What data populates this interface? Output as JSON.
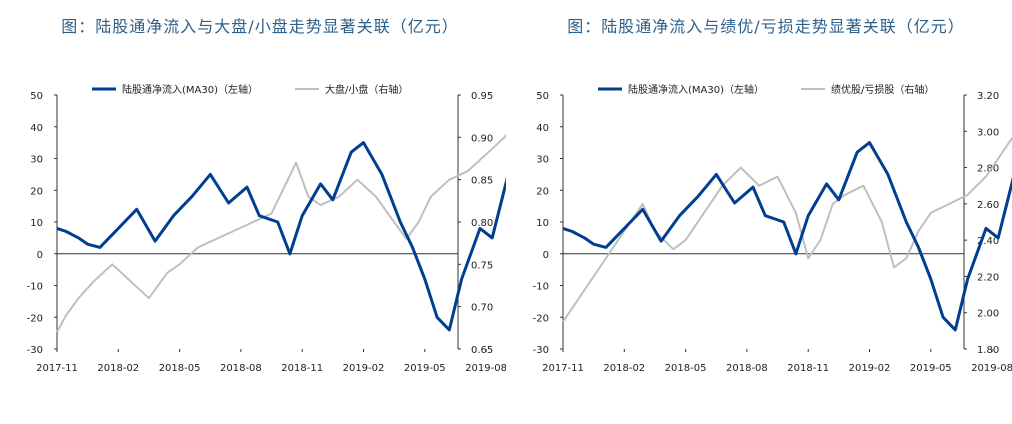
{
  "charts": [
    {
      "title": "图：陆股通净流入与大盘/小盘走势显著关联（亿元）",
      "chart_data": {
        "type": "line",
        "x_ticks": [
          "2017-11",
          "2018-02",
          "2018-05",
          "2018-08",
          "2018-11",
          "2019-02",
          "2019-05",
          "2019-08"
        ],
        "y_left": {
          "range": [
            -30,
            50
          ],
          "ticks": [
            "-30",
            "-20",
            "-10",
            "0",
            "10",
            "20",
            "30",
            "40",
            "50"
          ]
        },
        "y_right": {
          "range": [
            0.65,
            0.95
          ],
          "ticks": [
            "0.65",
            "0.70",
            "0.75",
            "0.80",
            "0.85",
            "0.90",
            "0.95"
          ]
        },
        "series": [
          {
            "name": "陆股通净流入(MA30)（左轴）",
            "axis": "left",
            "color": "#003f8f",
            "x": [
              0,
              0.15,
              0.35,
              0.5,
              0.7,
              1.0,
              1.3,
              1.6,
              1.9,
              2.2,
              2.5,
              2.8,
              3.1,
              3.3,
              3.6,
              3.8,
              4.0,
              4.3,
              4.5,
              4.8,
              5.0,
              5.3,
              5.6,
              5.8,
              6.0,
              6.2,
              6.4,
              6.6,
              6.9,
              7.1,
              7.4,
              7.6,
              7.85
            ],
            "values": [
              8,
              7,
              5,
              3,
              2,
              8,
              14,
              4,
              12,
              18,
              25,
              16,
              21,
              12,
              10,
              0,
              12,
              22,
              17,
              32,
              35,
              25,
              10,
              2,
              -8,
              -20,
              -24,
              -8,
              8,
              5,
              28,
              30,
              20
            ]
          },
          {
            "name": "大盘/小盘（右轴）",
            "axis": "right",
            "color": "#bfbfbf",
            "x": [
              0,
              0.15,
              0.35,
              0.6,
              0.9,
              1.2,
              1.5,
              1.8,
              2.0,
              2.3,
              2.6,
              2.9,
              3.2,
              3.5,
              3.7,
              3.9,
              4.1,
              4.3,
              4.6,
              4.9,
              5.2,
              5.5,
              5.7,
              5.9,
              6.1,
              6.4,
              6.7,
              7.0,
              7.3,
              7.5,
              7.7,
              7.85
            ],
            "values": [
              0.67,
              0.69,
              0.71,
              0.73,
              0.75,
              0.73,
              0.71,
              0.74,
              0.75,
              0.77,
              0.78,
              0.79,
              0.8,
              0.81,
              0.84,
              0.87,
              0.83,
              0.82,
              0.83,
              0.85,
              0.83,
              0.8,
              0.78,
              0.8,
              0.83,
              0.85,
              0.86,
              0.88,
              0.9,
              0.92,
              0.89,
              0.91
            ]
          }
        ]
      }
    },
    {
      "title": "图：陆股通净流入与绩优/亏损走势显著关联（亿元）",
      "chart_data": {
        "type": "line",
        "x_ticks": [
          "2017-11",
          "2018-02",
          "2018-05",
          "2018-08",
          "2018-11",
          "2019-02",
          "2019-05",
          "2019-08"
        ],
        "y_left": {
          "range": [
            -30,
            50
          ],
          "ticks": [
            "-30",
            "-20",
            "-10",
            "0",
            "10",
            "20",
            "30",
            "40",
            "50"
          ]
        },
        "y_right": {
          "range": [
            1.8,
            3.2
          ],
          "ticks": [
            "1.80",
            "2.00",
            "2.20",
            "2.40",
            "2.60",
            "2.80",
            "3.00",
            "3.20"
          ]
        },
        "series": [
          {
            "name": "陆股通净流入(MA30)（左轴）",
            "axis": "left",
            "color": "#003f8f",
            "x": [
              0,
              0.15,
              0.35,
              0.5,
              0.7,
              1.0,
              1.3,
              1.6,
              1.9,
              2.2,
              2.5,
              2.8,
              3.1,
              3.3,
              3.6,
              3.8,
              4.0,
              4.3,
              4.5,
              4.8,
              5.0,
              5.3,
              5.6,
              5.8,
              6.0,
              6.2,
              6.4,
              6.6,
              6.9,
              7.1,
              7.4,
              7.6,
              7.85
            ],
            "values": [
              8,
              7,
              5,
              3,
              2,
              8,
              14,
              4,
              12,
              18,
              25,
              16,
              21,
              12,
              10,
              0,
              12,
              22,
              17,
              32,
              35,
              25,
              10,
              2,
              -8,
              -20,
              -24,
              -8,
              8,
              5,
              28,
              30,
              20
            ]
          },
          {
            "name": "绩优股/亏损股（右轴）",
            "axis": "right",
            "color": "#bfbfbf",
            "x": [
              0,
              0.2,
              0.4,
              0.7,
              1.0,
              1.3,
              1.5,
              1.8,
              2.0,
              2.3,
              2.6,
              2.9,
              3.2,
              3.5,
              3.8,
              4.0,
              4.2,
              4.4,
              4.6,
              4.9,
              5.2,
              5.4,
              5.6,
              5.8,
              6.0,
              6.3,
              6.6,
              6.9,
              7.1,
              7.3,
              7.5,
              7.7,
              7.85
            ],
            "values": [
              1.95,
              2.05,
              2.15,
              2.3,
              2.45,
              2.6,
              2.45,
              2.35,
              2.4,
              2.55,
              2.7,
              2.8,
              2.7,
              2.75,
              2.55,
              2.3,
              2.4,
              2.6,
              2.65,
              2.7,
              2.5,
              2.25,
              2.3,
              2.45,
              2.55,
              2.6,
              2.65,
              2.75,
              2.85,
              2.95,
              3.05,
              2.9,
              3.02
            ]
          }
        ]
      }
    }
  ]
}
